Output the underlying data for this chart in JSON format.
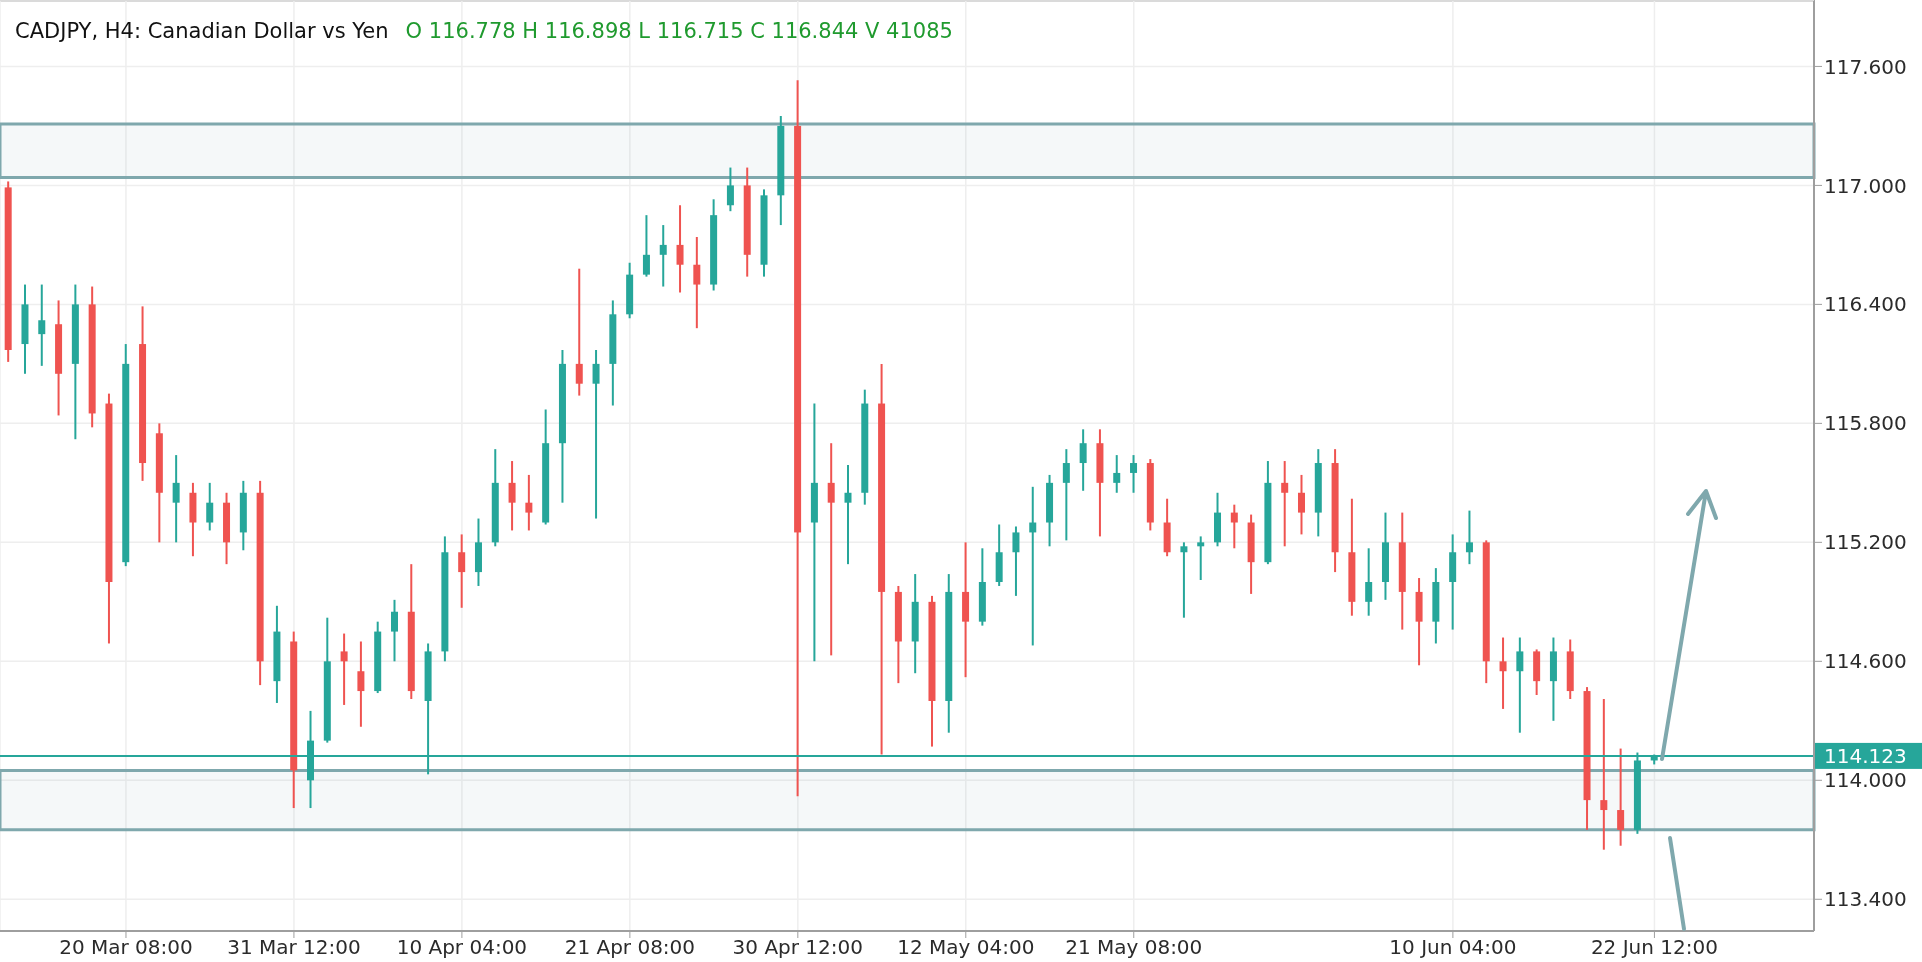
{
  "chart_data": {
    "type": "candlestick",
    "title": "CADJPY, H4: Canadian Dollar vs Yen",
    "subtitle": "O 116.778 H 116.898 L 116.715 C 116.844 V 41085",
    "categories": [
      null,
      null,
      null,
      null,
      null,
      null,
      null,
      "20 Mar 08:00",
      null,
      null,
      null,
      null,
      null,
      null,
      null,
      null,
      null,
      "31 Mar 12:00",
      null,
      null,
      null,
      null,
      null,
      null,
      null,
      null,
      null,
      "10 Apr 04:00",
      null,
      null,
      null,
      null,
      null,
      null,
      null,
      null,
      null,
      "21 Apr 08:00",
      null,
      null,
      null,
      null,
      null,
      null,
      null,
      null,
      null,
      "30 Apr 12:00",
      null,
      null,
      null,
      null,
      null,
      null,
      null,
      null,
      null,
      "12 May 04:00",
      null,
      null,
      null,
      null,
      null,
      null,
      null,
      null,
      null,
      "21 May 08:00",
      null,
      null,
      null,
      null,
      null,
      null,
      null,
      null,
      null,
      null,
      null,
      null,
      null,
      null,
      null,
      null,
      null,
      null,
      "10 Jun 04:00",
      null,
      null,
      null,
      null,
      null,
      null,
      null,
      null,
      null,
      null,
      null,
      "22 Jun 12:00",
      null,
      null,
      null,
      null,
      null,
      null,
      null,
      null,
      null
    ],
    "ohlc": [
      [
        116.99,
        117.02,
        116.11,
        116.17
      ],
      [
        116.2,
        116.5,
        116.05,
        116.4
      ],
      [
        116.25,
        116.5,
        116.09,
        116.32
      ],
      [
        116.3,
        116.42,
        115.84,
        116.05
      ],
      [
        116.1,
        116.5,
        115.72,
        116.4
      ],
      [
        116.4,
        116.49,
        115.78,
        115.85
      ],
      [
        115.9,
        115.95,
        114.69,
        115.0
      ],
      [
        115.1,
        116.2,
        115.08,
        116.1
      ],
      [
        116.2,
        116.39,
        115.51,
        115.6
      ],
      [
        115.75,
        115.8,
        115.2,
        115.45
      ],
      [
        115.4,
        115.64,
        115.2,
        115.5
      ],
      [
        115.45,
        115.5,
        115.13,
        115.3
      ],
      [
        115.3,
        115.5,
        115.26,
        115.4
      ],
      [
        115.4,
        115.45,
        115.09,
        115.2
      ],
      [
        115.25,
        115.51,
        115.16,
        115.45
      ],
      [
        115.45,
        115.51,
        114.48,
        114.6
      ],
      [
        114.5,
        114.88,
        114.39,
        114.75
      ],
      [
        114.7,
        114.75,
        113.86,
        114.05
      ],
      [
        114.0,
        114.35,
        113.86,
        114.2
      ],
      [
        114.2,
        114.82,
        114.19,
        114.6
      ],
      [
        114.65,
        114.74,
        114.38,
        114.6
      ],
      [
        114.55,
        114.7,
        114.27,
        114.45
      ],
      [
        114.45,
        114.8,
        114.44,
        114.75
      ],
      [
        114.75,
        114.91,
        114.6,
        114.85
      ],
      [
        114.85,
        115.09,
        114.41,
        114.45
      ],
      [
        114.4,
        114.69,
        114.03,
        114.65
      ],
      [
        114.65,
        115.23,
        114.6,
        115.15
      ],
      [
        115.15,
        115.24,
        114.87,
        115.05
      ],
      [
        115.05,
        115.32,
        114.98,
        115.2
      ],
      [
        115.2,
        115.67,
        115.18,
        115.5
      ],
      [
        115.5,
        115.61,
        115.26,
        115.4
      ],
      [
        115.4,
        115.54,
        115.26,
        115.35
      ],
      [
        115.3,
        115.87,
        115.29,
        115.7
      ],
      [
        115.7,
        116.17,
        115.4,
        116.1
      ],
      [
        116.1,
        116.58,
        115.94,
        116.0
      ],
      [
        116.0,
        116.17,
        115.32,
        116.1
      ],
      [
        116.1,
        116.42,
        115.89,
        116.35
      ],
      [
        116.35,
        116.61,
        116.33,
        116.55
      ],
      [
        116.55,
        116.85,
        116.54,
        116.65
      ],
      [
        116.65,
        116.8,
        116.49,
        116.7
      ],
      [
        116.7,
        116.9,
        116.46,
        116.6
      ],
      [
        116.6,
        116.74,
        116.28,
        116.5
      ],
      [
        116.5,
        116.93,
        116.47,
        116.85
      ],
      [
        116.9,
        117.09,
        116.87,
        117.0
      ],
      [
        117.0,
        117.09,
        116.54,
        116.65
      ],
      [
        116.6,
        116.98,
        116.54,
        116.95
      ],
      [
        116.95,
        117.35,
        116.8,
        117.3
      ],
      [
        117.3,
        117.53,
        113.92,
        115.25
      ],
      [
        115.3,
        115.9,
        114.6,
        115.5
      ],
      [
        115.5,
        115.7,
        114.63,
        115.4
      ],
      [
        115.4,
        115.59,
        115.09,
        115.45
      ],
      [
        115.45,
        115.97,
        115.39,
        115.9
      ],
      [
        115.9,
        116.1,
        114.13,
        114.95
      ],
      [
        114.95,
        114.98,
        114.49,
        114.7
      ],
      [
        114.7,
        115.04,
        114.54,
        114.9
      ],
      [
        114.9,
        114.93,
        114.17,
        114.4
      ],
      [
        114.4,
        115.04,
        114.24,
        114.95
      ],
      [
        114.95,
        115.2,
        114.52,
        114.8
      ],
      [
        114.8,
        115.17,
        114.78,
        115.0
      ],
      [
        115.0,
        115.29,
        114.98,
        115.15
      ],
      [
        115.15,
        115.28,
        114.93,
        115.25
      ],
      [
        115.25,
        115.48,
        114.68,
        115.3
      ],
      [
        115.3,
        115.54,
        115.18,
        115.5
      ],
      [
        115.5,
        115.67,
        115.21,
        115.6
      ],
      [
        115.6,
        115.77,
        115.46,
        115.7
      ],
      [
        115.7,
        115.77,
        115.23,
        115.5
      ],
      [
        115.5,
        115.64,
        115.45,
        115.55
      ],
      [
        115.55,
        115.64,
        115.45,
        115.6
      ],
      [
        115.6,
        115.62,
        115.26,
        115.3
      ],
      [
        115.3,
        115.42,
        115.13,
        115.15
      ],
      [
        115.15,
        115.2,
        114.82,
        115.18
      ],
      [
        115.18,
        115.23,
        115.01,
        115.2
      ],
      [
        115.2,
        115.45,
        115.18,
        115.35
      ],
      [
        115.35,
        115.39,
        115.17,
        115.3
      ],
      [
        115.3,
        115.34,
        114.94,
        115.1
      ],
      [
        115.1,
        115.61,
        115.09,
        115.5
      ],
      [
        115.5,
        115.61,
        115.18,
        115.45
      ],
      [
        115.45,
        115.54,
        115.24,
        115.35
      ],
      [
        115.35,
        115.67,
        115.23,
        115.6
      ],
      [
        115.6,
        115.67,
        115.05,
        115.15
      ],
      [
        115.15,
        115.42,
        114.83,
        114.9
      ],
      [
        114.9,
        115.17,
        114.83,
        115.0
      ],
      [
        115.0,
        115.35,
        114.91,
        115.2
      ],
      [
        115.2,
        115.35,
        114.76,
        114.95
      ],
      [
        114.95,
        115.02,
        114.58,
        114.8
      ],
      [
        114.8,
        115.07,
        114.69,
        115.0
      ],
      [
        115.0,
        115.24,
        114.76,
        115.15
      ],
      [
        115.15,
        115.36,
        115.09,
        115.2
      ],
      [
        115.2,
        115.21,
        114.49,
        114.6
      ],
      [
        114.6,
        114.72,
        114.36,
        114.55
      ],
      [
        114.55,
        114.72,
        114.24,
        114.65
      ],
      [
        114.65,
        114.66,
        114.43,
        114.5
      ],
      [
        114.5,
        114.72,
        114.3,
        114.65
      ],
      [
        114.65,
        114.71,
        114.41,
        114.45
      ],
      [
        114.45,
        114.47,
        113.75,
        113.9
      ],
      [
        113.9,
        114.41,
        113.65,
        113.85
      ],
      [
        113.85,
        114.16,
        113.67,
        113.75
      ],
      [
        113.75,
        114.14,
        113.73,
        114.1
      ],
      [
        114.1,
        114.13,
        114.08,
        114.12
      ],
      null,
      null,
      null,
      null,
      null,
      null,
      null,
      null,
      null
    ],
    "colors": [
      "#ef5350",
      "#26a69a",
      "#26a69a",
      "#ef5350",
      "#26a69a",
      "#ef5350",
      "#ef5350",
      "#26a69a",
      "#ef5350",
      "#ef5350",
      "#26a69a",
      "#ef5350",
      "#26a69a",
      "#ef5350",
      "#26a69a",
      "#ef5350",
      "#26a69a",
      "#ef5350",
      "#26a69a",
      "#26a69a",
      "#ef5350",
      "#ef5350",
      "#26a69a",
      "#26a69a",
      "#ef5350",
      "#26a69a",
      "#26a69a",
      "#ef5350",
      "#26a69a",
      "#26a69a",
      "#ef5350",
      "#ef5350",
      "#26a69a",
      "#26a69a",
      "#ef5350",
      "#26a69a",
      "#26a69a",
      "#26a69a",
      "#26a69a",
      "#26a69a",
      "#ef5350",
      "#ef5350",
      "#26a69a",
      "#26a69a",
      "#ef5350",
      "#26a69a",
      "#26a69a",
      "#ef5350",
      "#26a69a",
      "#ef5350",
      "#26a69a",
      "#26a69a",
      "#ef5350",
      "#ef5350",
      "#26a69a",
      "#ef5350",
      "#26a69a",
      "#ef5350",
      "#26a69a",
      "#26a69a",
      "#26a69a",
      "#26a69a",
      "#26a69a",
      "#26a69a",
      "#26a69a",
      "#ef5350",
      "#26a69a",
      "#26a69a",
      "#ef5350",
      "#ef5350",
      "#26a69a",
      "#26a69a",
      "#26a69a",
      "#ef5350",
      "#ef5350",
      "#26a69a",
      "#ef5350",
      "#ef5350",
      "#26a69a",
      "#ef5350",
      "#ef5350",
      "#26a69a",
      "#26a69a",
      "#ef5350",
      "#ef5350",
      "#26a69a",
      "#26a69a",
      "#26a69a",
      "#ef5350",
      "#ef5350",
      "#26a69a",
      "#ef5350",
      "#26a69a",
      "#ef5350",
      "#ef5350",
      "#ef5350",
      "#ef5350",
      "#26a69a",
      "#26a69a",
      null,
      null,
      null,
      null,
      null,
      null,
      null,
      null,
      null
    ],
    "ylim": [
      113.24,
      117.93
    ],
    "yticks": [
      {
        "value": 113.4,
        "label": "113.400"
      },
      {
        "value": 114.0,
        "label": "114.000"
      },
      {
        "value": 114.6,
        "label": "114.600"
      },
      {
        "value": 115.2,
        "label": "115.200"
      },
      {
        "value": 115.8,
        "label": "115.800"
      },
      {
        "value": 116.4,
        "label": "116.400"
      },
      {
        "value": 117.0,
        "label": "117.000"
      },
      {
        "value": 117.6,
        "label": "117.600"
      }
    ],
    "grid": true,
    "ref_lines": [
      {
        "axis": "y",
        "value": 114.123,
        "label": "114.123",
        "color": "#26a69a"
      }
    ],
    "bands": [
      {
        "axis": "y",
        "from": 117.04,
        "to": 117.31,
        "color": "#7fa8ad"
      },
      {
        "axis": "y",
        "from": 113.75,
        "to": 114.05,
        "color": "#7fa8ad"
      }
    ]
  }
}
